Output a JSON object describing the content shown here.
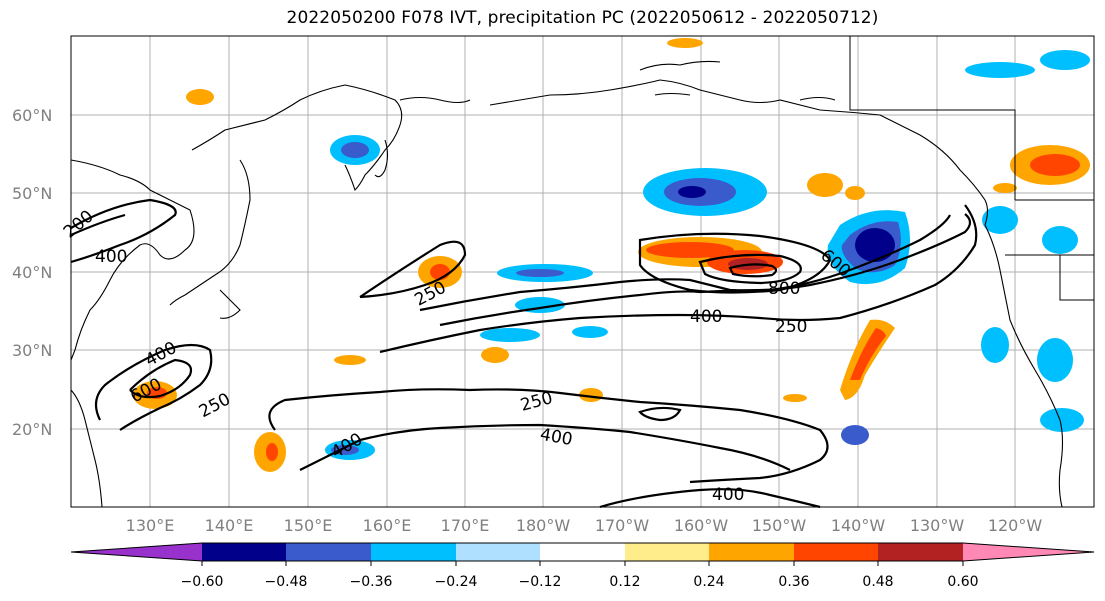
{
  "title": "2022050200 F078 IVT, precipitation PC (2022050612 - 2022050712)",
  "lat_labels": [
    "60°N",
    "50°N",
    "40°N",
    "30°N",
    "20°N"
  ],
  "lon_labels": [
    "130°E",
    "140°E",
    "150°E",
    "160°E",
    "170°E",
    "180°W",
    "170°W",
    "160°W",
    "150°W",
    "140°W",
    "130°W",
    "120°W"
  ],
  "contour_labels": [
    "400",
    "250",
    "400",
    "600",
    "250",
    "800",
    "600",
    "400",
    "250",
    "250",
    "400",
    "400",
    "400",
    "200"
  ],
  "colorbar": {
    "tick_labels": [
      "−0.60",
      "−0.48",
      "−0.36",
      "−0.24",
      "−0.12",
      "0.12",
      "0.24",
      "0.36",
      "0.48",
      "0.60"
    ],
    "colors": [
      "#9932cc",
      "#00008b",
      "#3a5bcc",
      "#00bfff",
      "#b0e0ff",
      "#ffffff",
      "#ffec8b",
      "#ffa500",
      "#ff4500",
      "#b22222",
      "#ff88b4"
    ]
  }
}
